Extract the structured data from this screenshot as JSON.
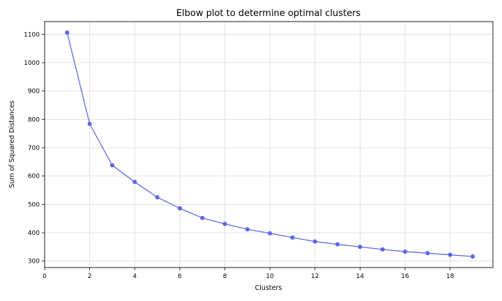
{
  "chart_data": {
    "type": "line",
    "title": "Elbow plot to determine optimal clusters",
    "xlabel": "Clusters",
    "ylabel": "Sum of Squared Distances",
    "xlim": [
      0,
      19.9
    ],
    "ylim": [
      277,
      1145
    ],
    "xticks": [
      0,
      2,
      4,
      6,
      8,
      10,
      12,
      14,
      16,
      18
    ],
    "yticks": [
      300,
      400,
      500,
      600,
      700,
      800,
      900,
      1000,
      1100
    ],
    "grid": true,
    "line_color": "#5a6be0",
    "series": [
      {
        "x": [
          1,
          2,
          3,
          4,
          5,
          6,
          7,
          8,
          9,
          10,
          11,
          12,
          13,
          14,
          15,
          16,
          17,
          18,
          19
        ],
        "values": [
          1106,
          784,
          638,
          579,
          525,
          486,
          452,
          431,
          412,
          398,
          383,
          369,
          359,
          350,
          341,
          333,
          328,
          322,
          316
        ]
      }
    ]
  }
}
